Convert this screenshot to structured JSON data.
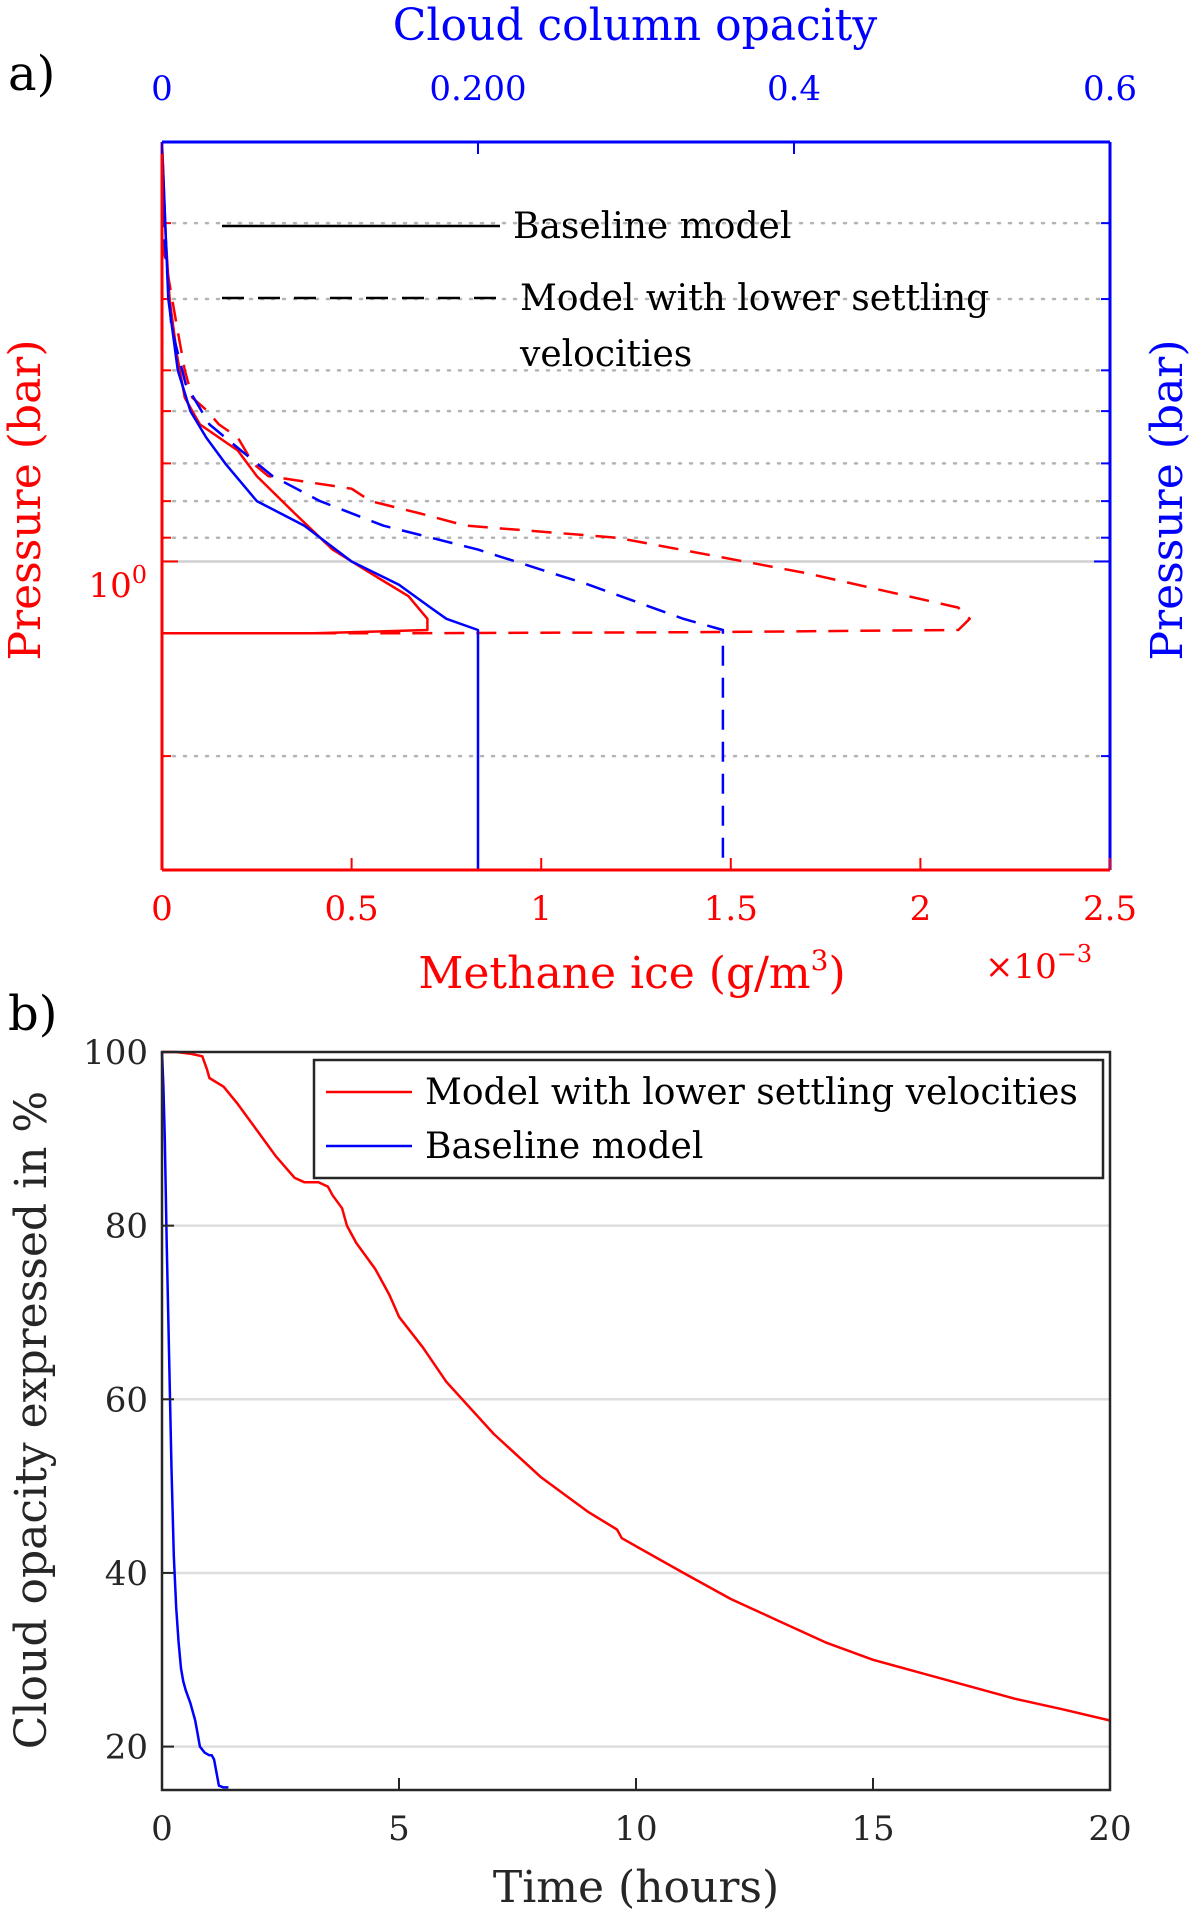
{
  "colors": {
    "red": "#ff0000",
    "blue": "#0000ff",
    "grid": "#c8c8c8",
    "axis": "#262626",
    "text": "#000000"
  },
  "chart_data": [
    {
      "panel_label": "a)",
      "type": "line",
      "title": "",
      "x_bottom": {
        "label_main": "Methane ice (g/m",
        "label_superscript": "3",
        "label_close": ")",
        "range": [
          0,
          0.0025
        ],
        "multiplier_label": "×10",
        "multiplier_exponent": "−3",
        "tick_values": [
          0,
          0.0005,
          0.001,
          0.0015,
          0.002,
          0.0025
        ],
        "tick_labels": [
          "0",
          "0.5",
          "1",
          "1.5",
          "2",
          "2.5"
        ]
      },
      "x_top": {
        "label": "Cloud column opacity",
        "range": [
          0,
          0.6
        ],
        "tick_values": [
          0,
          0.2,
          0.4,
          0.6
        ],
        "tick_labels": [
          "0",
          "0.200",
          "0.4",
          "0.6"
        ]
      },
      "y_left": {
        "label": "Pressure (bar)",
        "scale": "log",
        "reversed": true,
        "range": [
          0.7,
          1.3
        ],
        "tick_labels": [
          "10",
          "0"
        ]
      },
      "y_right": {
        "label": "Pressure (bar)"
      },
      "minor_gridlines_pressure": [
        0.75,
        0.8,
        0.85,
        0.88,
        0.92,
        0.95,
        0.98,
        1.18
      ],
      "major_gridline_pressure": 1.0,
      "legend": {
        "position": "top",
        "entries": [
          {
            "line1": "Baseline model",
            "line2": "",
            "style": "solid"
          },
          {
            "line1": "Model with lower settling",
            "line2": "velocities",
            "style": "dashed"
          }
        ]
      },
      "series": [
        {
          "name": "Methane ice - baseline model",
          "axis": "bottom",
          "color": "red",
          "style": "solid",
          "x": [
            0,
            1e-05,
            2e-05,
            4e-05,
            6e-05,
            8e-05,
            0.0001,
            0.00015,
            0.0002,
            0.00025,
            0.00035,
            0.00045,
            0.00055,
            0.00065,
            0.0007,
            0.0007,
            0.0004,
            0,
            0
          ],
          "p": [
            0.7,
            0.76,
            0.8,
            0.84,
            0.87,
            0.88,
            0.89,
            0.9,
            0.91,
            0.93,
            0.96,
            0.99,
            1.01,
            1.03,
            1.05,
            1.06,
            1.063,
            1.063,
            1.07
          ]
        },
        {
          "name": "Methane ice - lower settling velocities",
          "axis": "bottom",
          "color": "red",
          "style": "dashed",
          "x": [
            0,
            2e-05,
            4e-05,
            6e-05,
            8e-05,
            0.00012,
            0.00015,
            0.0002,
            0.00024,
            0.00028,
            0.0005,
            0.00055,
            0.00068,
            0.0008,
            0.0012,
            0.0017,
            0.0021,
            0.00213,
            0.0021,
            0.0014,
            0.0006,
            0,
            0
          ],
          "p": [
            0.76,
            0.79,
            0.82,
            0.85,
            0.87,
            0.88,
            0.89,
            0.9,
            0.92,
            0.93,
            0.94,
            0.95,
            0.96,
            0.97,
            0.98,
            1.01,
            1.04,
            1.05,
            1.06,
            1.062,
            1.063,
            1.063,
            1.07
          ]
        },
        {
          "name": "Cloud column opacity - baseline model",
          "axis": "top",
          "color": "blue",
          "style": "solid",
          "x": [
            0,
            0.004,
            0.01,
            0.018,
            0.028,
            0.04,
            0.06,
            0.09,
            0.12,
            0.15,
            0.17,
            0.18,
            0.2,
            0.2,
            0.2
          ],
          "p": [
            0.7,
            0.8,
            0.85,
            0.88,
            0.9,
            0.92,
            0.95,
            0.97,
            1.0,
            1.02,
            1.04,
            1.05,
            1.06,
            1.12,
            1.3
          ]
        },
        {
          "name": "Cloud column opacity - lower settling velocities",
          "axis": "top",
          "color": "blue",
          "style": "dashed",
          "x": [
            0,
            0.006,
            0.015,
            0.03,
            0.05,
            0.07,
            0.1,
            0.14,
            0.2,
            0.27,
            0.33,
            0.355,
            0.355,
            0.355
          ],
          "p": [
            0.74,
            0.82,
            0.86,
            0.89,
            0.91,
            0.93,
            0.95,
            0.97,
            0.99,
            1.02,
            1.05,
            1.06,
            1.15,
            1.3
          ]
        }
      ]
    },
    {
      "panel_label": "b)",
      "type": "line",
      "title": "",
      "xlabel": "Time (hours)",
      "ylabel": "Cloud opacity expressed in %",
      "xlim": [
        0,
        20
      ],
      "ylim": [
        15,
        100
      ],
      "x_ticks": [
        0,
        5,
        10,
        15,
        20
      ],
      "y_ticks": [
        20,
        40,
        60,
        80,
        100
      ],
      "grid": true,
      "legend": {
        "position": "top-right",
        "entries": [
          "Model with lower settling velocities",
          "Baseline model"
        ]
      },
      "series": [
        {
          "name": "Model with lower settling velocities",
          "color": "red",
          "x": [
            0,
            0.3,
            0.6,
            0.85,
            0.95,
            1.0,
            1.3,
            1.6,
            2.0,
            2.4,
            2.8,
            3.0,
            3.3,
            3.5,
            3.6,
            3.8,
            3.9,
            4.1,
            4.5,
            4.8,
            5.0,
            5.5,
            6.0,
            7.0,
            8.0,
            9.0,
            9.6,
            9.7,
            11.0,
            12.0,
            13.0,
            14.0,
            15.0,
            16.0,
            17.0,
            18.0,
            19.0,
            20.0
          ],
          "y": [
            100,
            100,
            99.8,
            99.5,
            98,
            97,
            96,
            94,
            91,
            88,
            85.5,
            85,
            85,
            84.5,
            83.5,
            82,
            80,
            78,
            75,
            72,
            69.5,
            66,
            62,
            56,
            51,
            47,
            45,
            44,
            40,
            37,
            34.5,
            32,
            30,
            28.5,
            27,
            25.5,
            24.3,
            23
          ]
        },
        {
          "name": "Baseline model",
          "color": "blue",
          "x": [
            0,
            0.03,
            0.06,
            0.1,
            0.15,
            0.2,
            0.25,
            0.3,
            0.35,
            0.4,
            0.45,
            0.5,
            0.6,
            0.7,
            0.75,
            0.8,
            0.9,
            1.0,
            1.05,
            1.1,
            1.15,
            1.2,
            1.3,
            1.4
          ],
          "y": [
            100,
            96,
            90,
            78,
            65,
            52,
            42,
            36,
            32,
            29,
            27.5,
            26.5,
            25,
            23,
            21.5,
            20,
            19.3,
            19,
            19,
            18.5,
            17,
            15.5,
            15.3,
            15.3
          ]
        }
      ]
    }
  ]
}
